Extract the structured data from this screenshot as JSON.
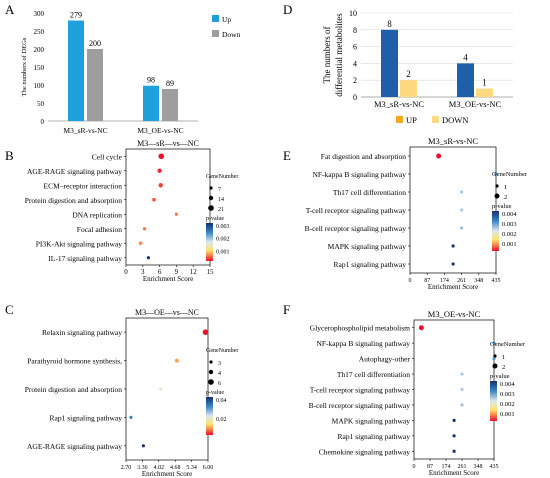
{
  "colors": {
    "up_blue": "#1EA0DC",
    "down_gray": "#9E9E9E",
    "up_orange": "#F5A623",
    "down_yellow": "#FFD980",
    "metab_blue": "#1F5FA8",
    "gradient_top": "#17306E",
    "gradient_mid1": "#3A86C4",
    "gradient_mid2": "#DCE6F0",
    "gradient_mid3": "#FFE36B",
    "gradient_bottom": "#E8102A"
  },
  "panels": {
    "A": "A",
    "B": "B",
    "C": "C",
    "D": "D",
    "E": "E",
    "F": "F"
  },
  "chart_data": [
    {
      "panel": "A",
      "type": "bar",
      "ylabel": "The numbers of DEGs",
      "categories": [
        "M3_sR-vs-NC",
        "M3_OE-vs-NC"
      ],
      "series": [
        {
          "name": "Up",
          "values": [
            279,
            98
          ]
        },
        {
          "name": "Down",
          "values": [
            200,
            89
          ]
        }
      ],
      "ylim": [
        0,
        300
      ],
      "yticks": [
        "0",
        "50",
        "100",
        "150",
        "200",
        "250",
        "300"
      ],
      "legend": "right"
    },
    {
      "panel": "D",
      "type": "bar",
      "ylabel": "The numbers of\ndifferential metabolites",
      "categories": [
        "M3_sR-vs-NC",
        "M3_OE-vs-NC"
      ],
      "series": [
        {
          "name": "UP",
          "values": [
            8,
            4
          ]
        },
        {
          "name": "DOWN",
          "values": [
            2,
            1
          ]
        }
      ],
      "ylim": [
        0,
        10
      ],
      "yticks": [
        "0",
        "2",
        "4",
        "6",
        "8",
        "10"
      ],
      "legend": "bottom"
    },
    {
      "panel": "B",
      "type": "scatter",
      "title": "M3—sR—vs—NC",
      "xlabel": "Enrichment Score",
      "xlim": [
        0,
        15
      ],
      "xticks": [
        "0",
        "3",
        "6",
        "9",
        "12",
        "15"
      ],
      "categories": [
        "Cell cycle",
        "AGE-RAGE signaling pathway",
        "ECM–receptor interaction",
        "Protein digestion and absorption",
        "DNA replication",
        "Focal adhesion",
        "PI3K-Akt signaling pathway",
        "IL-17 signaling pathway"
      ],
      "x": [
        6.3,
        6.0,
        6.2,
        5.0,
        9.0,
        3.3,
        2.6,
        4.0
      ],
      "size": [
        21,
        14,
        14,
        10,
        7,
        7,
        10,
        7
      ],
      "pvalue": [
        0.0005,
        0.0006,
        0.0007,
        0.0008,
        0.0009,
        0.0009,
        0.001,
        0.0035
      ],
      "legend_size_title": "GeneNumber",
      "legend_sizes": [
        "7",
        "14",
        "21"
      ],
      "legend_color_title": "p-value",
      "legend_color_ticks": [
        "0.003",
        "0.002",
        "0.001"
      ]
    },
    {
      "panel": "C",
      "type": "scatter",
      "title": "M3—OE—vs—NC",
      "xlabel": "Enrichment Score",
      "xlim": [
        2.7,
        6.0
      ],
      "xticks": [
        "2.70",
        "3.36",
        "4.02",
        "4.68",
        "5.34",
        "6.00"
      ],
      "categories": [
        "Relaxin signaling pathway",
        "Parathyroid hormone synthesis,",
        "Protein digestion and absorption",
        "Rap1 signaling pathway",
        "AGE-RAGE signaling pathway"
      ],
      "x": [
        5.9,
        4.75,
        4.1,
        2.9,
        3.4
      ],
      "size": [
        6,
        4,
        3,
        3,
        3
      ],
      "pvalue": [
        0.01,
        0.018,
        0.028,
        0.04,
        0.05
      ],
      "legend_size_title": "GeneNumber",
      "legend_sizes": [
        "3",
        "4",
        "6"
      ],
      "legend_color_title": "p-value",
      "legend_color_ticks": [
        "0.04",
        "0.02"
      ]
    },
    {
      "panel": "E",
      "type": "scatter",
      "title": "M3_sR-vs-NC",
      "xlabel": "Enrichment Score",
      "xlim": [
        0,
        435
      ],
      "xticks": [
        "0",
        "87",
        "174",
        "261",
        "348",
        "435"
      ],
      "categories": [
        "Fat digestion and absorption",
        "NF-kappa B signaling pathway",
        "Th17 cell differentiation",
        "T-cell receptor signaling pathway",
        "B-cell receptor signaling pathway",
        "MAPK signaling pathway",
        "Rap1 signaling pathway"
      ],
      "x": [
        145,
        435,
        261,
        261,
        261,
        218,
        218
      ],
      "size": [
        2,
        1,
        1,
        1,
        1,
        1,
        1
      ],
      "pvalue": [
        0.0005,
        0.0035,
        0.0028,
        0.0028,
        0.0029,
        0.0045,
        0.0045
      ],
      "legend_size_title": "GeneNumber",
      "legend_sizes": [
        "1",
        "2"
      ],
      "legend_color_title": "p-value",
      "legend_color_ticks": [
        "0.004",
        "0.003",
        "0.002",
        "0.001"
      ]
    },
    {
      "panel": "F",
      "type": "scatter",
      "title": "M3_OE-vs-NC",
      "xlabel": "Enrichment Score",
      "xlim": [
        0,
        435
      ],
      "xticks": [
        "0",
        "87",
        "174",
        "261",
        "348",
        "435"
      ],
      "categories": [
        "Glycerophospholipid metabolism",
        "NF-kappa B signaling pathway",
        "Autophagy-other",
        "Th17 cell differentiation",
        "T-cell receptor signaling pathway",
        "B-cell receptor signaling pathway",
        "MAPK signaling pathway",
        "Rap1 signaling pathway",
        "Chemokine signaling pathway"
      ],
      "x": [
        40,
        435,
        435,
        261,
        261,
        261,
        218,
        218,
        218
      ],
      "size": [
        2,
        1,
        1,
        1,
        1,
        1,
        1,
        1,
        1
      ],
      "pvalue": [
        0.0005,
        0.0035,
        0.0033,
        0.0028,
        0.0028,
        0.0029,
        0.0045,
        0.0045,
        0.0045
      ],
      "legend_size_title": "GeneNumber",
      "legend_sizes": [
        "1",
        "2"
      ],
      "legend_color_title": "p-value",
      "legend_color_ticks": [
        "0.004",
        "0.003",
        "0.002",
        "0.001"
      ]
    }
  ]
}
